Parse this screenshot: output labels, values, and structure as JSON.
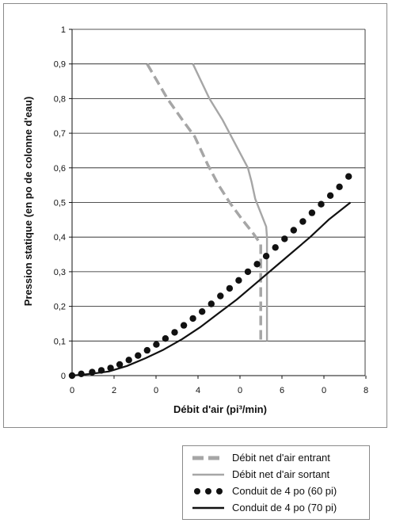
{
  "chart_data": {
    "type": "line",
    "title": "",
    "xlabel": "Débit d'air (pi³/min)",
    "ylabel": "Pression statique (en po de colonne d'eau)",
    "x_tick_labels": [
      "0",
      "2",
      "0",
      "4",
      "0",
      "6",
      "0",
      "8",
      "0"
    ],
    "y_tick_labels": [
      "0",
      "0,1",
      "0,2",
      "0,3",
      "0,4",
      "0,5",
      "0,6",
      "0,7",
      "0,8",
      "0,9",
      "1"
    ],
    "xlim": [
      0,
      8
    ],
    "ylim": [
      0,
      1
    ],
    "grid": true,
    "legend_position": "bottom-right-outside",
    "series": [
      {
        "name": "Débit net d'air entrant",
        "style": "dashed",
        "color": "#a6a6a6",
        "points": [
          [
            2.05,
            0.9
          ],
          [
            2.6,
            0.8
          ],
          [
            3.0,
            0.74
          ],
          [
            3.35,
            0.69
          ],
          [
            3.7,
            0.61
          ],
          [
            4.0,
            0.55
          ],
          [
            4.3,
            0.5
          ],
          [
            4.65,
            0.45
          ],
          [
            4.95,
            0.41
          ],
          [
            5.15,
            0.38
          ],
          [
            5.15,
            0.3
          ],
          [
            5.15,
            0.2
          ],
          [
            5.15,
            0.1
          ]
        ]
      },
      {
        "name": "Débit net d'air sortant",
        "style": "solid",
        "color": "#a6a6a6",
        "points": [
          [
            3.3,
            0.9
          ],
          [
            3.75,
            0.8
          ],
          [
            4.1,
            0.74
          ],
          [
            4.45,
            0.67
          ],
          [
            4.8,
            0.6
          ],
          [
            4.9,
            0.56
          ],
          [
            5.0,
            0.51
          ],
          [
            5.15,
            0.47
          ],
          [
            5.3,
            0.43
          ],
          [
            5.32,
            0.4
          ],
          [
            5.32,
            0.3
          ],
          [
            5.32,
            0.2
          ],
          [
            5.32,
            0.1
          ]
        ]
      },
      {
        "name": "Conduit de 4 po (60 pi)",
        "style": "dotted",
        "color": "#111111",
        "points": [
          [
            0.0,
            0.0
          ],
          [
            0.25,
            0.005
          ],
          [
            0.55,
            0.01
          ],
          [
            0.8,
            0.015
          ],
          [
            1.05,
            0.022
          ],
          [
            1.3,
            0.032
          ],
          [
            1.55,
            0.045
          ],
          [
            1.8,
            0.058
          ],
          [
            2.05,
            0.073
          ],
          [
            2.3,
            0.09
          ],
          [
            2.55,
            0.107
          ],
          [
            2.8,
            0.125
          ],
          [
            3.05,
            0.145
          ],
          [
            3.3,
            0.165
          ],
          [
            3.55,
            0.185
          ],
          [
            3.8,
            0.207
          ],
          [
            4.05,
            0.23
          ],
          [
            4.3,
            0.252
          ],
          [
            4.55,
            0.275
          ],
          [
            4.8,
            0.3
          ],
          [
            5.05,
            0.322
          ],
          [
            5.3,
            0.345
          ],
          [
            5.55,
            0.37
          ],
          [
            5.8,
            0.395
          ],
          [
            6.05,
            0.42
          ],
          [
            6.3,
            0.445
          ],
          [
            6.55,
            0.47
          ],
          [
            6.8,
            0.495
          ],
          [
            7.05,
            0.52
          ],
          [
            7.3,
            0.545
          ],
          [
            7.55,
            0.575
          ]
        ]
      },
      {
        "name": "Conduit de 4 po (70 pi)",
        "style": "solid",
        "color": "#111111",
        "points": [
          [
            0.0,
            0.0
          ],
          [
            0.5,
            0.005
          ],
          [
            1.0,
            0.012
          ],
          [
            1.5,
            0.028
          ],
          [
            2.0,
            0.05
          ],
          [
            2.5,
            0.075
          ],
          [
            3.0,
            0.105
          ],
          [
            3.5,
            0.14
          ],
          [
            4.0,
            0.18
          ],
          [
            4.5,
            0.22
          ],
          [
            5.0,
            0.265
          ],
          [
            5.5,
            0.31
          ],
          [
            6.0,
            0.355
          ],
          [
            6.5,
            0.4
          ],
          [
            7.0,
            0.45
          ],
          [
            7.6,
            0.5
          ]
        ]
      }
    ]
  },
  "legend": {
    "items": [
      {
        "label": "Débit net d'air entrant",
        "icon": "gray-dashed-line"
      },
      {
        "label": "Débit net d'air sortant",
        "icon": "gray-solid-line"
      },
      {
        "label": "Conduit de 4 po (60 pi)",
        "icon": "black-dotted-line"
      },
      {
        "label": "Conduit de 4 po (70 pi)",
        "icon": "black-solid-line"
      }
    ]
  }
}
